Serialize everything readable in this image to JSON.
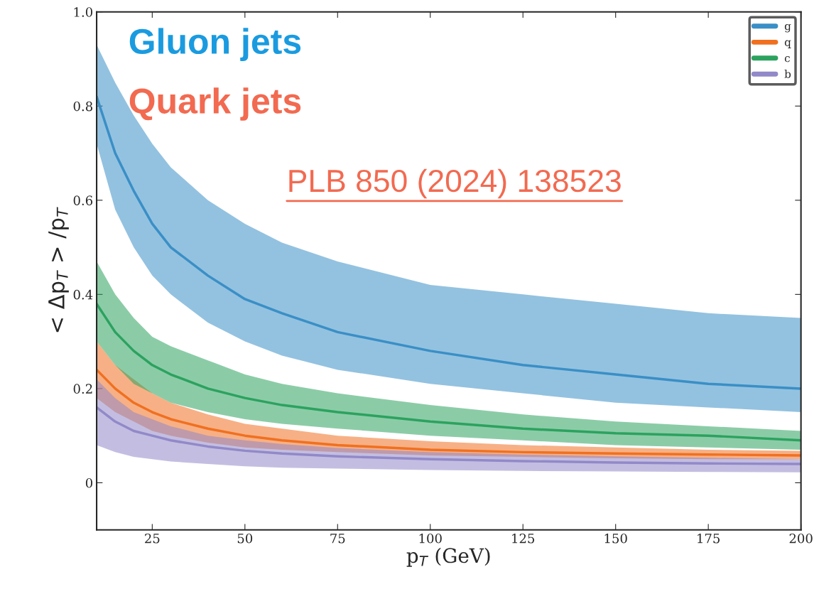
{
  "chart_data": {
    "type": "line",
    "xlabel": "p$_{T}$ (GeV)",
    "ylabel": "< Δp$_{T}$ > /p$_{T}$",
    "x": [
      10,
      15,
      20,
      25,
      30,
      40,
      50,
      60,
      75,
      100,
      125,
      150,
      175,
      200
    ],
    "xlim": [
      10,
      200
    ],
    "xticks": [
      25,
      50,
      75,
      100,
      125,
      150,
      175,
      200
    ],
    "ylim": [
      -0.1,
      1.0
    ],
    "yticks": [
      0,
      0.2,
      0.4,
      0.6,
      0.8,
      {
        "value": 1.0,
        "label": "1.0"
      }
    ],
    "grid": false,
    "legend": "top right",
    "marker": "none",
    "line_style": "solid",
    "series": [
      {
        "name": "g",
        "color": "#3a8fc6",
        "values": [
          0.82,
          0.7,
          0.62,
          0.55,
          0.5,
          0.44,
          0.39,
          0.36,
          0.32,
          0.28,
          0.25,
          0.23,
          0.21,
          0.2
        ],
        "lower": [
          0.72,
          0.58,
          0.5,
          0.44,
          0.4,
          0.34,
          0.3,
          0.27,
          0.24,
          0.21,
          0.19,
          0.17,
          0.16,
          0.15
        ],
        "upper": [
          0.93,
          0.85,
          0.78,
          0.72,
          0.67,
          0.6,
          0.55,
          0.51,
          0.47,
          0.42,
          0.4,
          0.38,
          0.36,
          0.35
        ]
      },
      {
        "name": "q",
        "color": "#f07020",
        "values": [
          0.24,
          0.2,
          0.17,
          0.15,
          0.135,
          0.115,
          0.1,
          0.09,
          0.08,
          0.07,
          0.065,
          0.062,
          0.06,
          0.058
        ],
        "lower": [
          0.18,
          0.15,
          0.13,
          0.11,
          0.1,
          0.085,
          0.075,
          0.07,
          0.065,
          0.058,
          0.055,
          0.052,
          0.05,
          0.05
        ],
        "upper": [
          0.3,
          0.25,
          0.22,
          0.19,
          0.17,
          0.145,
          0.125,
          0.115,
          0.1,
          0.088,
          0.08,
          0.075,
          0.07,
          0.068
        ]
      },
      {
        "name": "c",
        "color": "#2ca25f",
        "values": [
          0.38,
          0.32,
          0.28,
          0.25,
          0.23,
          0.2,
          0.18,
          0.165,
          0.15,
          0.13,
          0.115,
          0.105,
          0.1,
          0.09
        ],
        "lower": [
          0.3,
          0.25,
          0.21,
          0.19,
          0.17,
          0.15,
          0.135,
          0.125,
          0.115,
          0.1,
          0.09,
          0.08,
          0.075,
          0.07
        ],
        "upper": [
          0.47,
          0.4,
          0.35,
          0.31,
          0.29,
          0.26,
          0.23,
          0.21,
          0.19,
          0.165,
          0.145,
          0.13,
          0.12,
          0.11
        ]
      },
      {
        "name": "b",
        "color": "#9189c8",
        "values": [
          0.16,
          0.13,
          0.11,
          0.1,
          0.09,
          0.077,
          0.068,
          0.062,
          0.056,
          0.05,
          0.046,
          0.043,
          0.041,
          0.04
        ],
        "lower": [
          0.08,
          0.065,
          0.055,
          0.05,
          0.045,
          0.04,
          0.035,
          0.032,
          0.03,
          0.027,
          0.025,
          0.024,
          0.023,
          0.022
        ],
        "upper": [
          0.22,
          0.18,
          0.15,
          0.135,
          0.12,
          0.1,
          0.09,
          0.082,
          0.074,
          0.065,
          0.06,
          0.056,
          0.053,
          0.05
        ]
      }
    ],
    "annotations": [
      "Gluon jets",
      "Quark jets",
      "PLB 850 (2024) 138523"
    ]
  }
}
